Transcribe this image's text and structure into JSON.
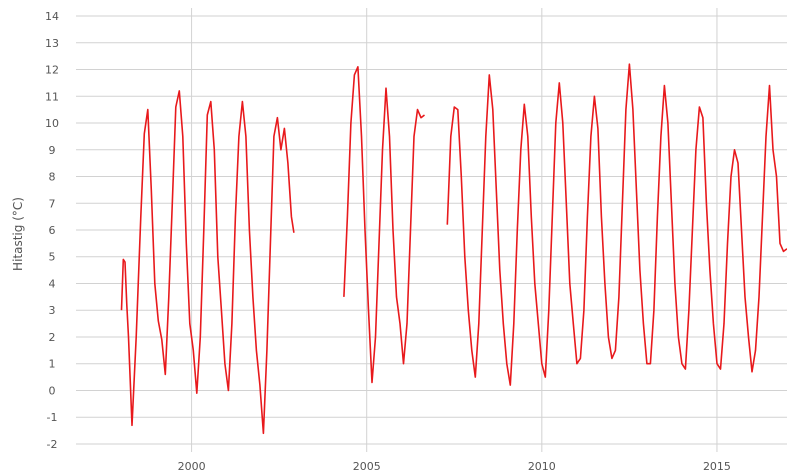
{
  "chart_data": {
    "type": "line",
    "title": "",
    "xlabel": "",
    "ylabel": "Hitastig (°C)",
    "xlim": [
      1996.7,
      2017.0
    ],
    "ylim": [
      -2.3,
      14.3
    ],
    "yticks": [
      -2,
      -1,
      0,
      1,
      2,
      3,
      4,
      5,
      6,
      7,
      8,
      9,
      10,
      11,
      12,
      13,
      14
    ],
    "xticks": [
      2000,
      2005,
      2010,
      2015
    ],
    "grid": true,
    "legend": "none",
    "series": [
      {
        "color": "#e8191c",
        "segments": [
          {
            "x": [
              1998.0,
              1998.05,
              1998.1,
              1998.15,
              1998.2,
              1998.3,
              1998.42,
              1998.55,
              1998.65,
              1998.75,
              1998.85,
              1998.95,
              1999.05,
              1999.15,
              1999.25,
              1999.35,
              1999.45,
              1999.55,
              1999.65,
              1999.75,
              1999.85,
              1999.95,
              2000.05,
              2000.15,
              2000.25,
              2000.35,
              2000.45,
              2000.55,
              2000.65,
              2000.75,
              2000.85,
              2000.95,
              2001.05,
              2001.15,
              2001.25,
              2001.35,
              2001.45,
              2001.55,
              2001.65,
              2001.75,
              2001.85,
              2001.95,
              2002.05,
              2002.15,
              2002.25,
              2002.35,
              2002.45,
              2002.55,
              2002.65,
              2002.75,
              2002.85,
              2002.92
            ],
            "y": [
              3.0,
              4.9,
              4.8,
              3.2,
              2.0,
              -1.3,
              2.0,
              6.5,
              9.6,
              10.5,
              7.5,
              4.0,
              2.6,
              1.9,
              0.6,
              3.5,
              7.0,
              10.6,
              11.2,
              9.5,
              5.5,
              2.5,
              1.5,
              -0.1,
              2.0,
              6.0,
              10.3,
              10.8,
              9.0,
              5.0,
              3.0,
              1.0,
              0.0,
              2.5,
              6.5,
              9.5,
              10.8,
              9.5,
              6.0,
              3.5,
              1.5,
              0.2,
              -1.6,
              1.5,
              5.5,
              9.5,
              10.2,
              9.0,
              9.8,
              8.5,
              6.5,
              5.9
            ]
          },
          {
            "x": [
              2004.35,
              2004.45,
              2004.55,
              2004.65,
              2004.75,
              2004.85,
              2004.95,
              2005.05,
              2005.15,
              2005.25,
              2005.35,
              2005.45,
              2005.55,
              2005.65,
              2005.75,
              2005.85,
              2005.95,
              2006.05,
              2006.15,
              2006.25,
              2006.35,
              2006.45,
              2006.55,
              2006.65
            ],
            "y": [
              3.5,
              6.5,
              10.0,
              11.8,
              12.1,
              9.5,
              6.0,
              3.0,
              0.3,
              2.0,
              5.5,
              9.0,
              11.3,
              9.5,
              6.0,
              3.5,
              2.5,
              1.0,
              2.5,
              6.0,
              9.5,
              10.5,
              10.2,
              10.3
            ]
          },
          {
            "x": [
              2007.3,
              2007.4,
              2007.5,
              2007.6,
              2007.7,
              2007.8,
              2007.9,
              2008.0,
              2008.1,
              2008.2,
              2008.3,
              2008.4,
              2008.5,
              2008.6,
              2008.7,
              2008.8,
              2008.9,
              2009.0,
              2009.1,
              2009.2,
              2009.3,
              2009.4,
              2009.5,
              2009.6,
              2009.7,
              2009.8,
              2009.9,
              2010.0,
              2010.1,
              2010.2,
              2010.3,
              2010.4,
              2010.5,
              2010.6,
              2010.7,
              2010.8,
              2010.9,
              2011.0,
              2011.1,
              2011.2,
              2011.3,
              2011.4,
              2011.5,
              2011.6,
              2011.7,
              2011.8,
              2011.9,
              2012.0,
              2012.1,
              2012.2,
              2012.3,
              2012.4,
              2012.5,
              2012.6,
              2012.7,
              2012.8,
              2012.9,
              2013.0,
              2013.1,
              2013.2,
              2013.3,
              2013.4,
              2013.5,
              2013.6,
              2013.7,
              2013.8,
              2013.9,
              2014.0,
              2014.1,
              2014.2,
              2014.3,
              2014.4,
              2014.5,
              2014.6,
              2014.7,
              2014.8,
              2014.9,
              2015.0,
              2015.1,
              2015.2,
              2015.3,
              2015.4,
              2015.5,
              2015.6,
              2015.7,
              2015.8,
              2015.9,
              2016.0,
              2016.1,
              2016.2,
              2016.3,
              2016.4,
              2016.5,
              2016.6,
              2016.7,
              2016.8,
              2016.9,
              2017.0
            ],
            "y": [
              6.2,
              9.5,
              10.6,
              10.5,
              8.0,
              5.0,
              3.0,
              1.5,
              0.5,
              2.5,
              6.0,
              9.5,
              11.8,
              10.5,
              7.5,
              4.5,
              2.5,
              1.0,
              0.2,
              2.5,
              6.0,
              9.0,
              10.7,
              9.5,
              6.5,
              4.0,
              2.5,
              1.0,
              0.5,
              3.0,
              6.5,
              10.0,
              11.5,
              10.0,
              7.0,
              4.0,
              2.5,
              1.0,
              1.2,
              3.0,
              6.5,
              9.5,
              11.0,
              9.8,
              6.5,
              4.0,
              2.0,
              1.2,
              1.5,
              3.5,
              7.0,
              10.5,
              12.2,
              10.5,
              7.5,
              4.5,
              2.5,
              1.0,
              1.0,
              3.0,
              6.5,
              9.5,
              11.4,
              10.0,
              7.0,
              4.0,
              2.0,
              1.0,
              0.8,
              3.0,
              6.0,
              9.0,
              10.6,
              10.2,
              7.0,
              4.5,
              2.5,
              1.0,
              0.8,
              2.5,
              5.5,
              8.0,
              9.0,
              8.5,
              6.0,
              3.5,
              2.0,
              0.7,
              1.5,
              3.5,
              6.5,
              9.5,
              11.4,
              9.0,
              8.0,
              5.5,
              5.2,
              5.3
            ]
          }
        ]
      }
    ]
  }
}
